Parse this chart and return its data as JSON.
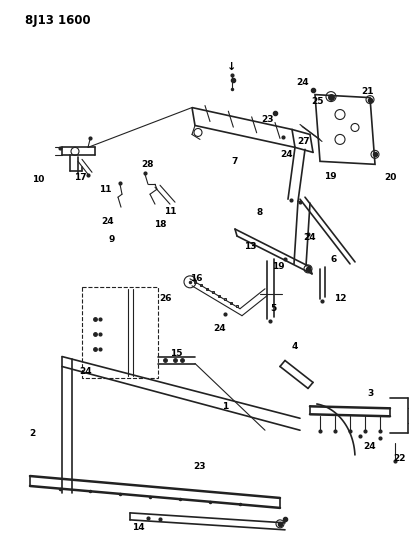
{
  "title": "8J13 1600",
  "bg": "#ffffff",
  "lc": "#222222",
  "fig_w": 4.09,
  "fig_h": 5.33,
  "dpi": 100
}
